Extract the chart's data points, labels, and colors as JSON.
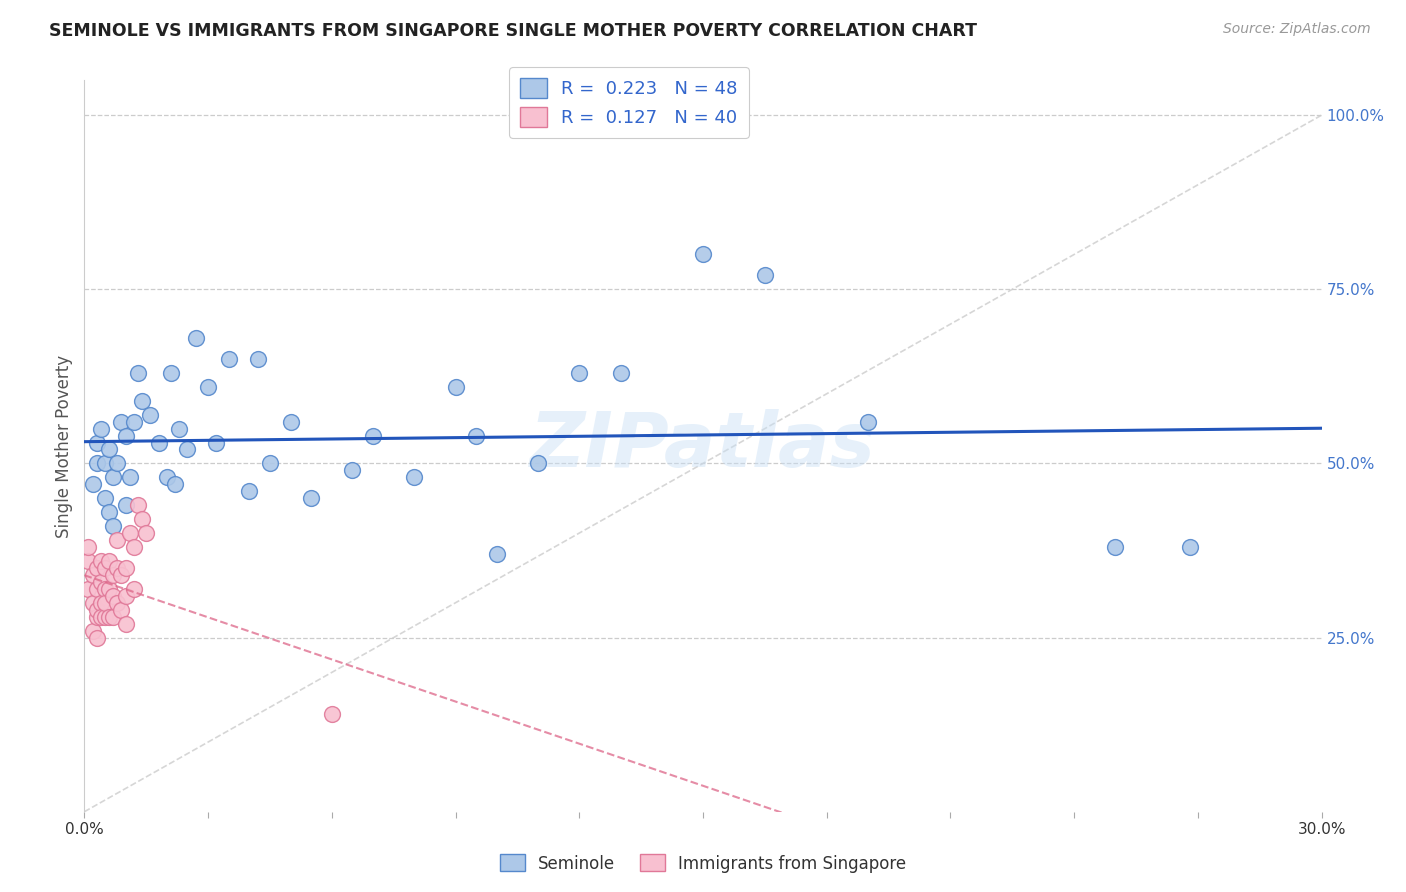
{
  "title": "SEMINOLE VS IMMIGRANTS FROM SINGAPORE SINGLE MOTHER POVERTY CORRELATION CHART",
  "source": "Source: ZipAtlas.com",
  "ylabel": "Single Mother Poverty",
  "xmin": 0.0,
  "xmax": 0.3,
  "ymin": 0.0,
  "ymax": 1.0,
  "blue_R": 0.223,
  "blue_N": 48,
  "pink_R": 0.127,
  "pink_N": 40,
  "blue_color": "#adc8e8",
  "blue_edge": "#5588cc",
  "pink_color": "#f8c0d0",
  "pink_edge": "#e07898",
  "blue_line_color": "#2255bb",
  "pink_line_color": "#dd6688",
  "watermark": "ZIPatlas",
  "legend_label1": "Seminole",
  "legend_label2": "Immigrants from Singapore",
  "seminole_x": [
    0.002,
    0.003,
    0.003,
    0.004,
    0.005,
    0.005,
    0.006,
    0.006,
    0.007,
    0.007,
    0.008,
    0.009,
    0.01,
    0.01,
    0.011,
    0.012,
    0.013,
    0.014,
    0.016,
    0.018,
    0.02,
    0.021,
    0.022,
    0.023,
    0.025,
    0.027,
    0.03,
    0.032,
    0.035,
    0.04,
    0.042,
    0.045,
    0.05,
    0.055,
    0.065,
    0.07,
    0.08,
    0.09,
    0.095,
    0.1,
    0.11,
    0.12,
    0.13,
    0.15,
    0.165,
    0.19,
    0.25,
    0.268
  ],
  "seminole_y": [
    0.47,
    0.5,
    0.53,
    0.55,
    0.45,
    0.5,
    0.43,
    0.52,
    0.41,
    0.48,
    0.5,
    0.56,
    0.44,
    0.54,
    0.48,
    0.56,
    0.63,
    0.59,
    0.57,
    0.53,
    0.48,
    0.63,
    0.47,
    0.55,
    0.52,
    0.68,
    0.61,
    0.53,
    0.65,
    0.46,
    0.65,
    0.5,
    0.56,
    0.45,
    0.49,
    0.54,
    0.48,
    0.61,
    0.54,
    0.37,
    0.5,
    0.63,
    0.63,
    0.8,
    0.77,
    0.56,
    0.38,
    0.38
  ],
  "singapore_x": [
    0.001,
    0.001,
    0.001,
    0.002,
    0.002,
    0.002,
    0.003,
    0.003,
    0.003,
    0.003,
    0.003,
    0.004,
    0.004,
    0.004,
    0.004,
    0.005,
    0.005,
    0.005,
    0.005,
    0.006,
    0.006,
    0.006,
    0.007,
    0.007,
    0.007,
    0.008,
    0.008,
    0.008,
    0.009,
    0.009,
    0.01,
    0.01,
    0.01,
    0.011,
    0.012,
    0.012,
    0.013,
    0.014,
    0.015,
    0.06
  ],
  "singapore_y": [
    0.36,
    0.38,
    0.32,
    0.3,
    0.26,
    0.34,
    0.28,
    0.32,
    0.35,
    0.29,
    0.25,
    0.3,
    0.33,
    0.28,
    0.36,
    0.32,
    0.28,
    0.35,
    0.3,
    0.32,
    0.28,
    0.36,
    0.31,
    0.34,
    0.28,
    0.39,
    0.35,
    0.3,
    0.34,
    0.29,
    0.35,
    0.31,
    0.27,
    0.4,
    0.38,
    0.32,
    0.44,
    0.42,
    0.4,
    0.14
  ]
}
